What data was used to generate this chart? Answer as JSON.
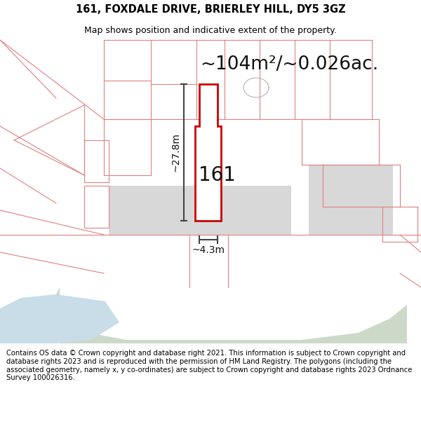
{
  "title": "161, FOXDALE DRIVE, BRIERLEY HILL, DY5 3GZ",
  "subtitle": "Map shows position and indicative extent of the property.",
  "area_text": "~104m²/~0.026ac.",
  "dim_vertical": "~27.8m",
  "dim_horizontal": "~4.3m",
  "label": "161",
  "footer": "Contains OS data © Crown copyright and database right 2021. This information is subject to Crown copyright and database rights 2023 and is reproduced with the permission of HM Land Registry. The polygons (including the associated geometry, namely x, y co-ordinates) are subject to Crown copyright and database rights 2023 Ordnance Survey 100026316.",
  "bg_color": "#ffffff",
  "map_bg": "#f5f5f5",
  "green_patch_color": "#cdd9c8",
  "blue_patch_color": "#c8dde8",
  "light_gray_rect_color": "#d8d8d8",
  "right_gray_rect_color": "#d8d8d8",
  "neighbor_line_color": "#e08080",
  "subject_line_color": "#cc0000",
  "dimension_line_color": "#444444",
  "title_fontsize": 10.5,
  "subtitle_fontsize": 9,
  "area_fontsize": 19,
  "label_fontsize": 20,
  "dim_fontsize": 10,
  "footer_fontsize": 7.2
}
